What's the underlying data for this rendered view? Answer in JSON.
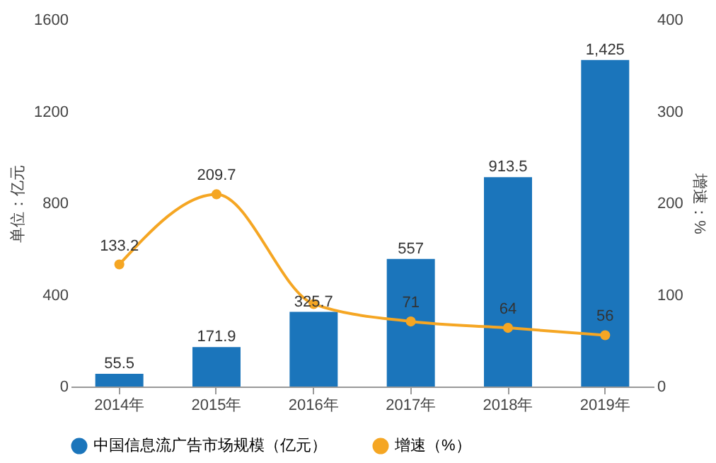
{
  "chart_data": {
    "type": "bar",
    "categories": [
      "2014年",
      "2015年",
      "2016年",
      "2017年",
      "2018年",
      "2019年"
    ],
    "series": [
      {
        "name": "中国信息流广告市场规模（亿元）",
        "color": "#1b75bb",
        "values": [
          55.5,
          171.9,
          325.7,
          557,
          913.5,
          1425
        ],
        "value_labels": [
          "55.5",
          "171.9",
          "325.7",
          "557",
          "913.5",
          "1,425"
        ]
      },
      {
        "name": "增速（%）",
        "color": "#f5a623",
        "type": "line",
        "axis": "y2",
        "values": [
          133.2,
          209.7,
          90,
          71,
          64,
          56
        ],
        "value_labels": [
          "133.2",
          "209.7",
          null,
          "71",
          "64",
          "56"
        ]
      }
    ],
    "ylabel": "单位：亿元",
    "y2label": "增速：%",
    "ylim": [
      0,
      1600
    ],
    "yticks": [
      0,
      400,
      800,
      1200,
      1600
    ],
    "y2lim": [
      0,
      400
    ],
    "y2ticks": [
      0,
      100,
      200,
      300,
      400
    ],
    "legend": "bottom",
    "marker": "circle",
    "line_style": "solid",
    "grid": false
  }
}
